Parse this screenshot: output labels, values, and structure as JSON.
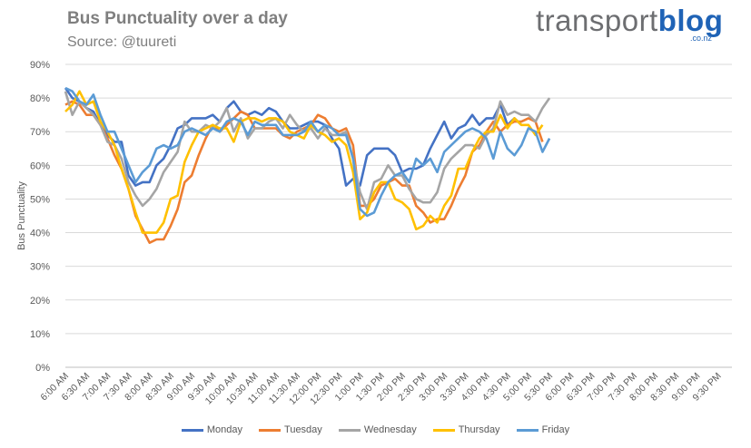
{
  "title": "Bus Punctuality over a day",
  "subtitle": "Source: @tuureti",
  "logo": {
    "main": "transport",
    "accent": "blog",
    "suffix": ".co.nz"
  },
  "colors": {
    "Monday": "#4472c4",
    "Tuesday": "#ed7d31",
    "Wednesday": "#a5a5a5",
    "Thursday": "#ffc000",
    "Friday": "#5b9bd5",
    "grid": "#d9d9d9",
    "text": "#595959"
  },
  "chart_data": {
    "type": "line",
    "title": "Bus Punctuality over a day",
    "subtitle": "Source: @tuureti",
    "xlabel": "",
    "ylabel": "Bus Punctuality",
    "ylim": [
      0,
      90
    ],
    "yticks": [
      "0%",
      "10%",
      "20%",
      "30%",
      "40%",
      "50%",
      "60%",
      "70%",
      "80%",
      "90%"
    ],
    "x_tick_labels": [
      "6:00 AM",
      "6:30 AM",
      "7:00 AM",
      "7:30 AM",
      "8:00 AM",
      "8:30 AM",
      "9:00 AM",
      "9:30 AM",
      "10:00 AM",
      "10:30 AM",
      "11:00 AM",
      "11:30 AM",
      "12:00 PM",
      "12:30 PM",
      "1:00 PM",
      "1:30 PM",
      "2:00 PM",
      "2:30 PM",
      "3:00 PM",
      "3:30 PM",
      "4:00 PM",
      "4:30 PM",
      "5:00 PM",
      "5:30 PM",
      "6:00 PM",
      "6:30 PM",
      "7:00 PM",
      "7:30 PM",
      "8:00 PM",
      "8:30 PM",
      "9:00 PM",
      "9:30 PM"
    ],
    "x_interval": "10 min",
    "legend": "bottom",
    "grid": true,
    "series": [
      {
        "name": "Monday",
        "values": [
          83,
          80,
          79,
          77,
          76,
          72,
          69,
          67,
          67,
          57,
          54,
          55,
          55,
          60,
          62,
          66,
          71,
          72,
          74,
          74,
          74,
          75,
          73,
          77,
          79,
          76,
          75,
          76,
          75,
          77,
          76,
          73,
          71,
          71,
          72,
          73,
          73,
          72,
          68,
          65,
          54,
          56,
          54,
          63,
          65,
          65,
          65,
          63,
          58,
          59,
          59,
          60,
          65,
          69,
          73,
          68,
          71,
          72,
          75,
          72,
          74,
          74,
          78,
          72,
          74,
          72
        ]
      },
      {
        "name": "Tuesday",
        "values": [
          78,
          79,
          78,
          75,
          75,
          72,
          68,
          63,
          59,
          53,
          45,
          41,
          37,
          38,
          38,
          42,
          47,
          55,
          57,
          63,
          68,
          72,
          70,
          72,
          74,
          76,
          75,
          71,
          71,
          71,
          71,
          69,
          68,
          70,
          71,
          72,
          75,
          74,
          71,
          70,
          71,
          66,
          48,
          48,
          50,
          54,
          55,
          56,
          54,
          54,
          48,
          46,
          43,
          44,
          44,
          48,
          53,
          57,
          64,
          66,
          70,
          73,
          70,
          72,
          73,
          73,
          74,
          73,
          67
        ]
      },
      {
        "name": "Wednesday",
        "values": [
          82,
          75,
          79,
          77,
          75,
          72,
          67,
          66,
          62,
          55,
          51,
          48,
          50,
          53,
          58,
          61,
          64,
          73,
          70,
          70,
          72,
          71,
          73,
          77,
          70,
          74,
          68,
          71,
          71,
          73,
          74,
          71,
          75,
          72,
          70,
          71,
          68,
          71,
          69,
          69,
          70,
          62,
          52,
          47,
          55,
          56,
          60,
          57,
          57,
          53,
          50,
          49,
          49,
          52,
          59,
          62,
          64,
          66,
          66,
          65,
          69,
          71,
          79,
          75,
          76,
          75,
          75,
          73,
          77,
          80
        ]
      },
      {
        "name": "Thursday",
        "values": [
          76,
          78,
          82,
          78,
          79,
          73,
          70,
          66,
          59,
          53,
          46,
          40,
          40,
          40,
          43,
          50,
          51,
          61,
          66,
          70,
          71,
          72,
          71,
          71,
          67,
          73,
          74,
          74,
          73,
          74,
          74,
          73,
          70,
          69,
          68,
          72,
          70,
          69,
          67,
          68,
          66,
          58,
          44,
          46,
          52,
          55,
          55,
          50,
          49,
          47,
          41,
          42,
          45,
          43,
          48,
          51,
          59,
          59,
          64,
          68,
          70,
          70,
          75,
          71,
          74,
          72,
          72,
          69,
          72
        ]
      },
      {
        "name": "Friday",
        "values": [
          83,
          82,
          79,
          78,
          81,
          75,
          70,
          70,
          65,
          60,
          55,
          58,
          60,
          65,
          66,
          65,
          66,
          70,
          71,
          70,
          69,
          71,
          70,
          73,
          74,
          73,
          69,
          73,
          72,
          72,
          72,
          69,
          69,
          69,
          70,
          73,
          70,
          72,
          71,
          69,
          69,
          62,
          47,
          45,
          46,
          51,
          55,
          57,
          58,
          55,
          62,
          60,
          62,
          58,
          64,
          66,
          68,
          70,
          71,
          70,
          68,
          62,
          70,
          65,
          63,
          66,
          71,
          70,
          64,
          68
        ]
      }
    ]
  }
}
